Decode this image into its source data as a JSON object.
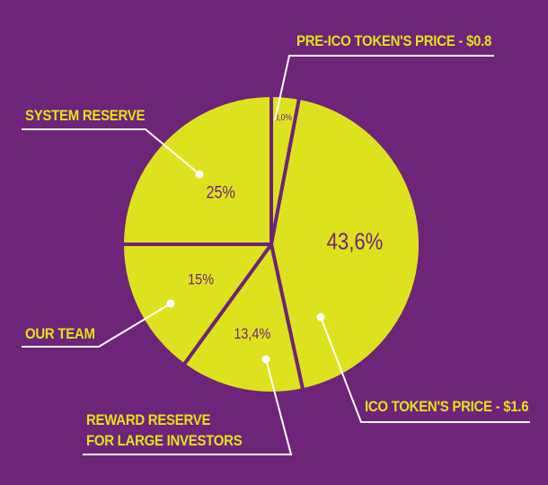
{
  "chart_data": {
    "type": "pie",
    "slices": [
      {
        "label": "PRE-ICO TOKEN'S PRICE - $0.8",
        "value": 3.0,
        "value_label": "3,0%"
      },
      {
        "label": "ICO TOKEN'S PRICE - $1.6",
        "value": 43.6,
        "value_label": "43,6%"
      },
      {
        "label": "REWARD RESERVE FOR LARGE INVESTORS",
        "value": 13.4,
        "value_label": "13,4%"
      },
      {
        "label": "OUR TEAM",
        "value": 15,
        "value_label": "15%"
      },
      {
        "label": "SYSTEM RESERVE",
        "value": 25,
        "value_label": "25%"
      }
    ],
    "legend_placement": "callouts around pie"
  },
  "labels": {
    "pre_ico": "PRE-ICO TOKEN'S PRICE - $0.8",
    "ico": "ICO TOKEN'S PRICE - $1.6",
    "reward_line1": "REWARD RESERVE",
    "reward_line2": "FOR LARGE INVESTORS",
    "team": "OUR TEAM",
    "system": "SYSTEM RESERVE"
  },
  "colors": {
    "background": "#6e2478",
    "slice_fill": "#dde21e",
    "slice_border": "#6e2478",
    "callout_text": "#e2e21c",
    "callout_line": "#ffffff"
  }
}
